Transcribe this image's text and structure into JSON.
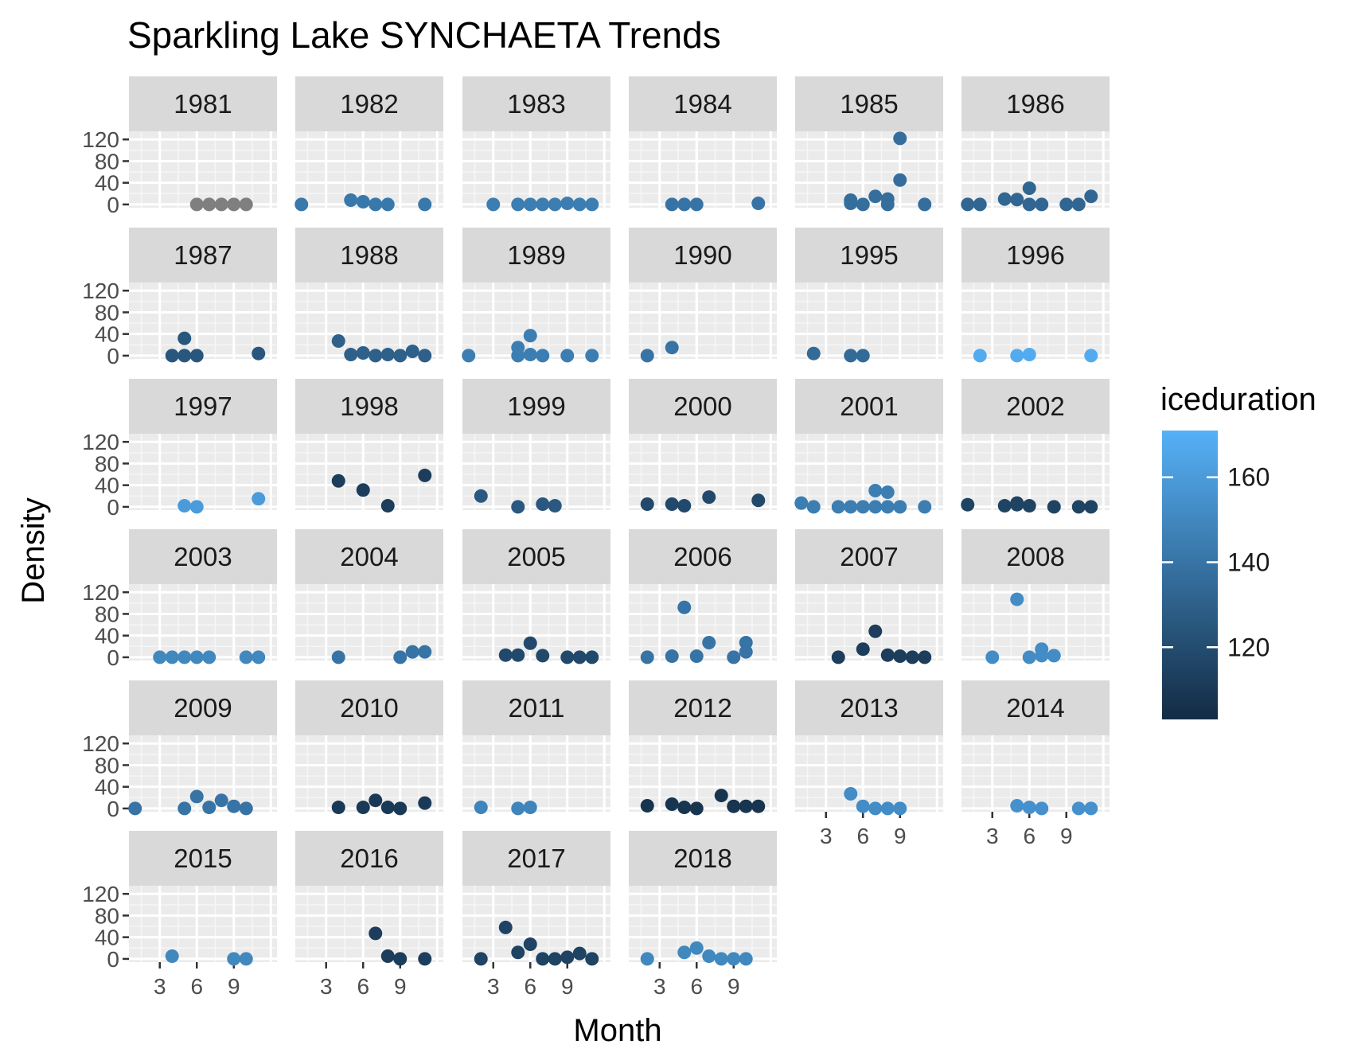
{
  "chart_data": {
    "type": "scatter",
    "title": "Sparkling Lake SYNCHAETA Trends",
    "xlabel": "Month",
    "ylabel": "Density",
    "xlim": [
      0.5,
      12.5
    ],
    "ylim": [
      -6,
      135
    ],
    "x_ticks": [
      3,
      6,
      9
    ],
    "y_ticks": [
      0,
      40,
      80,
      120
    ],
    "grid": true,
    "legend": {
      "title": "iceduration",
      "position": "right",
      "min": 103,
      "max": 171,
      "ticks": [
        120,
        140,
        160
      ],
      "color_low": "#132B43",
      "color_high": "#56B1F7",
      "na_color": "#7f7f7f"
    },
    "panels": [
      {
        "year": "1981",
        "ice": null,
        "x": [
          6,
          7,
          8,
          9,
          10
        ],
        "y": [
          0,
          0,
          0,
          0,
          0
        ]
      },
      {
        "year": "1982",
        "ice": 142,
        "x": [
          1,
          5,
          6,
          7,
          8,
          11
        ],
        "y": [
          0,
          8,
          5,
          0,
          0,
          0
        ]
      },
      {
        "year": "1983",
        "ice": 145,
        "x": [
          3,
          5,
          6,
          7,
          8,
          9,
          10,
          11
        ],
        "y": [
          0,
          0,
          0,
          0,
          0,
          2,
          0,
          0
        ]
      },
      {
        "year": "1984",
        "ice": 140,
        "x": [
          4,
          5,
          6,
          11
        ],
        "y": [
          0,
          0,
          0,
          2
        ]
      },
      {
        "year": "1985",
        "ice": 137,
        "x": [
          5,
          5,
          6,
          7,
          8,
          8,
          9,
          9,
          11
        ],
        "y": [
          8,
          2,
          0,
          15,
          10,
          0,
          122,
          45,
          0
        ]
      },
      {
        "year": "1986",
        "ice": 133,
        "x": [
          1,
          2,
          4,
          5,
          6,
          6,
          7,
          9,
          10,
          11
        ],
        "y": [
          0,
          0,
          10,
          9,
          30,
          0,
          0,
          0,
          0,
          15
        ]
      },
      {
        "year": "1987",
        "ice": 125,
        "x": [
          4,
          5,
          5,
          6,
          11
        ],
        "y": [
          0,
          32,
          0,
          0,
          4
        ]
      },
      {
        "year": "1988",
        "ice": 130,
        "x": [
          4,
          5,
          6,
          7,
          8,
          9,
          10,
          11
        ],
        "y": [
          27,
          2,
          5,
          0,
          2,
          0,
          8,
          0
        ]
      },
      {
        "year": "1989",
        "ice": 145,
        "x": [
          1,
          5,
          5,
          6,
          6,
          7,
          9,
          11
        ],
        "y": [
          0,
          15,
          0,
          37,
          2,
          0,
          0,
          0
        ]
      },
      {
        "year": "1990",
        "ice": 140,
        "x": [
          2,
          4
        ],
        "y": [
          0,
          15
        ]
      },
      {
        "year": "1995",
        "ice": 135,
        "x": [
          2,
          5,
          6
        ],
        "y": [
          4,
          0,
          0
        ]
      },
      {
        "year": "1996",
        "ice": 168,
        "x": [
          2,
          5,
          6,
          11
        ],
        "y": [
          0,
          0,
          2,
          0
        ]
      },
      {
        "year": "1997",
        "ice": 160,
        "x": [
          5,
          6,
          11
        ],
        "y": [
          2,
          0,
          15
        ]
      },
      {
        "year": "1998",
        "ice": 112,
        "x": [
          4,
          6,
          8,
          11
        ],
        "y": [
          48,
          31,
          2,
          58
        ]
      },
      {
        "year": "1999",
        "ice": 126,
        "x": [
          2,
          5,
          7,
          8
        ],
        "y": [
          20,
          0,
          5,
          2
        ]
      },
      {
        "year": "2000",
        "ice": 118,
        "x": [
          2,
          4,
          5,
          7,
          11
        ],
        "y": [
          5,
          5,
          2,
          18,
          12
        ]
      },
      {
        "year": "2001",
        "ice": 145,
        "x": [
          1,
          2,
          4,
          5,
          6,
          7,
          7,
          8,
          8,
          9,
          11
        ],
        "y": [
          7,
          0,
          0,
          0,
          0,
          30,
          0,
          27,
          0,
          0,
          0
        ]
      },
      {
        "year": "2002",
        "ice": 115,
        "x": [
          1,
          4,
          5,
          5,
          6,
          8,
          10,
          11
        ],
        "y": [
          4,
          2,
          7,
          4,
          2,
          0,
          0,
          0
        ]
      },
      {
        "year": "2003",
        "ice": 150,
        "x": [
          3,
          4,
          5,
          6,
          7,
          10,
          11
        ],
        "y": [
          0,
          0,
          0,
          0,
          0,
          0,
          0
        ]
      },
      {
        "year": "2004",
        "ice": 140,
        "x": [
          4,
          9,
          10,
          11
        ],
        "y": [
          0,
          0,
          10,
          10
        ]
      },
      {
        "year": "2005",
        "ice": 118,
        "x": [
          4,
          5,
          6,
          7,
          9,
          10,
          11
        ],
        "y": [
          4,
          4,
          26,
          3,
          0,
          0,
          0
        ]
      },
      {
        "year": "2006",
        "ice": 140,
        "x": [
          2,
          4,
          5,
          6,
          7,
          9,
          10,
          10
        ],
        "y": [
          0,
          2,
          92,
          2,
          27,
          0,
          27,
          10
        ]
      },
      {
        "year": "2007",
        "ice": 112,
        "x": [
          4,
          6,
          7,
          8,
          9,
          10,
          11
        ],
        "y": [
          0,
          15,
          48,
          4,
          2,
          0,
          0
        ]
      },
      {
        "year": "2008",
        "ice": 152,
        "x": [
          3,
          5,
          6,
          7,
          7,
          8
        ],
        "y": [
          0,
          107,
          0,
          15,
          3,
          3
        ]
      },
      {
        "year": "2009",
        "ice": 140,
        "x": [
          1,
          5,
          6,
          7,
          8,
          9,
          10
        ],
        "y": [
          0,
          0,
          22,
          2,
          15,
          4,
          0
        ]
      },
      {
        "year": "2010",
        "ice": 110,
        "x": [
          4,
          6,
          7,
          8,
          9,
          11
        ],
        "y": [
          2,
          2,
          15,
          2,
          0,
          10
        ]
      },
      {
        "year": "2011",
        "ice": 148,
        "x": [
          2,
          5,
          6
        ],
        "y": [
          2,
          0,
          2
        ]
      },
      {
        "year": "2012",
        "ice": 108,
        "x": [
          2,
          4,
          5,
          6,
          8,
          9,
          10,
          11
        ],
        "y": [
          5,
          8,
          2,
          0,
          24,
          4,
          4,
          4
        ]
      },
      {
        "year": "2013",
        "ice": 152,
        "x": [
          5,
          6,
          7,
          8,
          9
        ],
        "y": [
          27,
          4,
          0,
          0,
          0
        ]
      },
      {
        "year": "2014",
        "ice": 155,
        "x": [
          5,
          6,
          7,
          10,
          11
        ],
        "y": [
          5,
          2,
          0,
          0,
          0
        ]
      },
      {
        "year": "2015",
        "ice": 150,
        "x": [
          4,
          9,
          10
        ],
        "y": [
          5,
          0,
          0
        ]
      },
      {
        "year": "2016",
        "ice": 112,
        "x": [
          7,
          8,
          9,
          11
        ],
        "y": [
          47,
          5,
          0,
          0
        ]
      },
      {
        "year": "2017",
        "ice": 115,
        "x": [
          2,
          4,
          5,
          6,
          7,
          8,
          9,
          10,
          11
        ],
        "y": [
          0,
          58,
          12,
          27,
          0,
          0,
          3,
          10,
          0
        ]
      },
      {
        "year": "2018",
        "ice": 150,
        "x": [
          2,
          5,
          6,
          7,
          8,
          9,
          10
        ],
        "y": [
          0,
          12,
          20,
          5,
          0,
          0,
          0
        ]
      }
    ]
  }
}
